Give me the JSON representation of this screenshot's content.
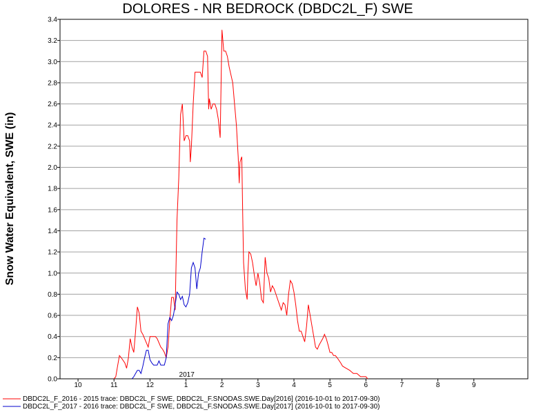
{
  "chart_data": {
    "type": "line",
    "title": "DOLORES - NR BEDROCK (DBDC2L_F) SWE",
    "ylabel": "Snow Water Equivalent, SWE (in)",
    "xlabel": "",
    "ylim": [
      0,
      3.4
    ],
    "y_ticks": [
      "0.0",
      "0.2",
      "0.4",
      "0.6",
      "0.8",
      "1.0",
      "1.2",
      "1.4",
      "1.6",
      "1.8",
      "2.0",
      "2.2",
      "2.4",
      "2.6",
      "2.8",
      "3.0",
      "3.2",
      "3.4"
    ],
    "x_ticks": [
      {
        "label": "10",
        "month": 10
      },
      {
        "label": "11",
        "month": 11
      },
      {
        "label": "12",
        "month": 12
      },
      {
        "label": "1",
        "month": 13
      },
      {
        "label": "2",
        "month": 14
      },
      {
        "label": "3",
        "month": 15
      },
      {
        "label": "4",
        "month": 16
      },
      {
        "label": "5",
        "month": 17
      },
      {
        "label": "6",
        "month": 18
      },
      {
        "label": "7",
        "month": 19
      },
      {
        "label": "8",
        "month": 20
      },
      {
        "label": "9",
        "month": 21
      }
    ],
    "year_label": "2017",
    "grid": true,
    "legend_position": "bottom",
    "series": [
      {
        "name": "DBDC2L_F_2016 - 2015 trace: DBDC2L_F SWE, DBDC2L_F.SNODAS.SWE.Day[2016] (2016-10-01 to 2017-09-30)",
        "color": "#ff0000",
        "points": [
          [
            11.0,
            0.0
          ],
          [
            11.05,
            0.02
          ],
          [
            11.1,
            0.12
          ],
          [
            11.15,
            0.22
          ],
          [
            11.2,
            0.2
          ],
          [
            11.3,
            0.15
          ],
          [
            11.35,
            0.1
          ],
          [
            11.4,
            0.2
          ],
          [
            11.45,
            0.38
          ],
          [
            11.5,
            0.3
          ],
          [
            11.55,
            0.25
          ],
          [
            11.6,
            0.45
          ],
          [
            11.65,
            0.68
          ],
          [
            11.7,
            0.62
          ],
          [
            11.75,
            0.45
          ],
          [
            11.8,
            0.42
          ],
          [
            11.85,
            0.38
          ],
          [
            11.9,
            0.34
          ],
          [
            11.95,
            0.3
          ],
          [
            12.0,
            0.4
          ],
          [
            12.05,
            0.4
          ],
          [
            12.1,
            0.4
          ],
          [
            12.15,
            0.4
          ],
          [
            12.2,
            0.38
          ],
          [
            12.3,
            0.3
          ],
          [
            12.35,
            0.28
          ],
          [
            12.4,
            0.25
          ],
          [
            12.45,
            0.2
          ],
          [
            12.5,
            0.3
          ],
          [
            12.55,
            0.55
          ],
          [
            12.6,
            0.77
          ],
          [
            12.65,
            0.77
          ],
          [
            12.7,
            0.65
          ],
          [
            12.72,
            1.0
          ],
          [
            12.75,
            1.5
          ],
          [
            12.8,
            1.9
          ],
          [
            12.85,
            2.5
          ],
          [
            12.9,
            2.6
          ],
          [
            12.95,
            2.25
          ],
          [
            13.0,
            2.3
          ],
          [
            13.05,
            2.3
          ],
          [
            13.1,
            2.25
          ],
          [
            13.12,
            2.05
          ],
          [
            13.15,
            2.2
          ],
          [
            13.2,
            2.6
          ],
          [
            13.25,
            2.9
          ],
          [
            13.3,
            2.9
          ],
          [
            13.35,
            2.9
          ],
          [
            13.4,
            2.9
          ],
          [
            13.45,
            2.85
          ],
          [
            13.5,
            3.1
          ],
          [
            13.55,
            3.1
          ],
          [
            13.6,
            3.05
          ],
          [
            13.63,
            2.55
          ],
          [
            13.65,
            2.65
          ],
          [
            13.7,
            2.55
          ],
          [
            13.75,
            2.6
          ],
          [
            13.8,
            2.6
          ],
          [
            13.85,
            2.55
          ],
          [
            13.9,
            2.45
          ],
          [
            13.95,
            2.28
          ],
          [
            14.0,
            3.3
          ],
          [
            14.05,
            3.1
          ],
          [
            14.1,
            3.1
          ],
          [
            14.15,
            3.05
          ],
          [
            14.2,
            2.95
          ],
          [
            14.3,
            2.8
          ],
          [
            14.35,
            2.6
          ],
          [
            14.4,
            2.4
          ],
          [
            14.45,
            2.1
          ],
          [
            14.48,
            1.85
          ],
          [
            14.5,
            2.05
          ],
          [
            14.55,
            2.1
          ],
          [
            14.58,
            1.5
          ],
          [
            14.6,
            1.1
          ],
          [
            14.65,
            0.85
          ],
          [
            14.7,
            0.75
          ],
          [
            14.72,
            1.0
          ],
          [
            14.75,
            1.2
          ],
          [
            14.8,
            1.18
          ],
          [
            14.85,
            1.1
          ],
          [
            14.9,
            0.98
          ],
          [
            14.95,
            0.88
          ],
          [
            15.0,
            1.0
          ],
          [
            15.05,
            0.9
          ],
          [
            15.1,
            0.75
          ],
          [
            15.15,
            0.72
          ],
          [
            15.2,
            1.15
          ],
          [
            15.25,
            1.0
          ],
          [
            15.3,
            0.95
          ],
          [
            15.35,
            0.82
          ],
          [
            15.4,
            0.88
          ],
          [
            15.45,
            0.85
          ],
          [
            15.5,
            0.8
          ],
          [
            15.55,
            0.75
          ],
          [
            15.6,
            0.7
          ],
          [
            15.65,
            0.65
          ],
          [
            15.7,
            0.72
          ],
          [
            15.75,
            0.7
          ],
          [
            15.8,
            0.6
          ],
          [
            15.85,
            0.8
          ],
          [
            15.9,
            0.93
          ],
          [
            15.95,
            0.9
          ],
          [
            16.0,
            0.82
          ],
          [
            16.05,
            0.7
          ],
          [
            16.1,
            0.55
          ],
          [
            16.15,
            0.45
          ],
          [
            16.2,
            0.45
          ],
          [
            16.25,
            0.4
          ],
          [
            16.3,
            0.35
          ],
          [
            16.35,
            0.5
          ],
          [
            16.4,
            0.7
          ],
          [
            16.45,
            0.6
          ],
          [
            16.5,
            0.5
          ],
          [
            16.55,
            0.4
          ],
          [
            16.6,
            0.3
          ],
          [
            16.65,
            0.28
          ],
          [
            16.7,
            0.32
          ],
          [
            16.75,
            0.35
          ],
          [
            16.8,
            0.38
          ],
          [
            16.85,
            0.42
          ],
          [
            16.9,
            0.38
          ],
          [
            16.95,
            0.32
          ],
          [
            17.0,
            0.25
          ],
          [
            17.05,
            0.25
          ],
          [
            17.1,
            0.22
          ],
          [
            17.15,
            0.22
          ],
          [
            17.2,
            0.2
          ],
          [
            17.3,
            0.15
          ],
          [
            17.35,
            0.12
          ],
          [
            17.45,
            0.1
          ],
          [
            17.55,
            0.08
          ],
          [
            17.65,
            0.05
          ],
          [
            17.75,
            0.05
          ],
          [
            17.85,
            0.02
          ],
          [
            18.0,
            0.02
          ],
          [
            18.05,
            0.0
          ]
        ]
      },
      {
        "name": "DBDC2L_F_2017 - 2016 trace: DBDC2L_F SWE, DBDC2L_F.SNODAS.SWE.Day[2017] (2016-10-01 to 2017-09-30)",
        "color": "#0000cc",
        "points": [
          [
            11.5,
            0.0
          ],
          [
            11.55,
            0.02
          ],
          [
            11.6,
            0.05
          ],
          [
            11.65,
            0.08
          ],
          [
            11.7,
            0.08
          ],
          [
            11.75,
            0.05
          ],
          [
            11.8,
            0.12
          ],
          [
            11.85,
            0.2
          ],
          [
            11.9,
            0.27
          ],
          [
            11.95,
            0.27
          ],
          [
            12.0,
            0.18
          ],
          [
            12.05,
            0.15
          ],
          [
            12.1,
            0.13
          ],
          [
            12.15,
            0.13
          ],
          [
            12.2,
            0.13
          ],
          [
            12.25,
            0.17
          ],
          [
            12.3,
            0.13
          ],
          [
            12.35,
            0.13
          ],
          [
            12.4,
            0.13
          ],
          [
            12.45,
            0.2
          ],
          [
            12.5,
            0.52
          ],
          [
            12.55,
            0.58
          ],
          [
            12.6,
            0.55
          ],
          [
            12.65,
            0.6
          ],
          [
            12.7,
            0.7
          ],
          [
            12.75,
            0.82
          ],
          [
            12.8,
            0.8
          ],
          [
            12.85,
            0.75
          ],
          [
            12.9,
            0.78
          ],
          [
            12.95,
            0.7
          ],
          [
            13.0,
            0.68
          ],
          [
            13.05,
            0.72
          ],
          [
            13.1,
            0.8
          ],
          [
            13.15,
            1.05
          ],
          [
            13.2,
            1.1
          ],
          [
            13.25,
            1.05
          ],
          [
            13.3,
            0.85
          ],
          [
            13.35,
            1.0
          ],
          [
            13.4,
            1.05
          ],
          [
            13.45,
            1.2
          ],
          [
            13.5,
            1.33
          ],
          [
            13.55,
            1.32
          ]
        ]
      }
    ]
  }
}
